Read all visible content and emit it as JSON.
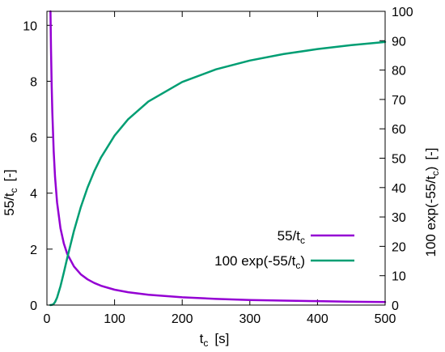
{
  "chart_data": {
    "type": "line",
    "x_axis": {
      "label_main": "t",
      "label_sub": "c",
      "label_unit": "[s]",
      "range": [
        0,
        500
      ],
      "ticks": [
        "0",
        "100",
        "200",
        "300",
        "400",
        "500"
      ]
    },
    "y_left": {
      "label_main": "55/t",
      "label_sub": "c",
      "label_unit": "[-]",
      "range": [
        0,
        10.5
      ],
      "ticks": [
        "0",
        "2",
        "4",
        "6",
        "8",
        "10"
      ]
    },
    "y_right": {
      "label_main": "100 exp(-55/t",
      "label_sub": "c",
      "label_close": ")",
      "label_unit": "[-]",
      "range": [
        0,
        100
      ],
      "ticks": [
        "0",
        "10",
        "20",
        "30",
        "40",
        "50",
        "60",
        "70",
        "80",
        "90",
        "100"
      ]
    },
    "series": [
      {
        "name_main": "55/t",
        "name_sub": "c",
        "name_close": "",
        "axis": "left",
        "color": "#9400d3",
        "x": [
          5.24,
          6,
          7,
          8,
          10,
          12,
          15,
          20,
          25,
          30,
          40,
          50,
          60,
          70,
          80,
          100,
          120,
          150,
          200,
          250,
          300,
          350,
          400,
          450,
          500
        ],
        "y": [
          10.5,
          9.17,
          7.86,
          6.88,
          5.5,
          4.58,
          3.67,
          2.75,
          2.2,
          1.83,
          1.38,
          1.1,
          0.92,
          0.79,
          0.69,
          0.55,
          0.46,
          0.37,
          0.28,
          0.22,
          0.18,
          0.16,
          0.14,
          0.12,
          0.11
        ]
      },
      {
        "name_main": "100 exp(-55/t",
        "name_sub": "c",
        "name_close": ")",
        "axis": "right",
        "color": "#009e73",
        "x": [
          5,
          8,
          10,
          12,
          15,
          20,
          25,
          30,
          40,
          50,
          60,
          70,
          80,
          100,
          120,
          150,
          200,
          250,
          300,
          350,
          400,
          450,
          500
        ],
        "y": [
          0.0,
          0.1,
          0.41,
          1.02,
          2.55,
          6.39,
          11.08,
          15.99,
          25.28,
          33.29,
          39.98,
          45.58,
          50.28,
          57.69,
          63.23,
          69.3,
          75.96,
          80.25,
          83.25,
          85.46,
          87.15,
          88.49,
          89.58
        ]
      }
    ],
    "grid": false,
    "legend_position": "bottom-right"
  }
}
